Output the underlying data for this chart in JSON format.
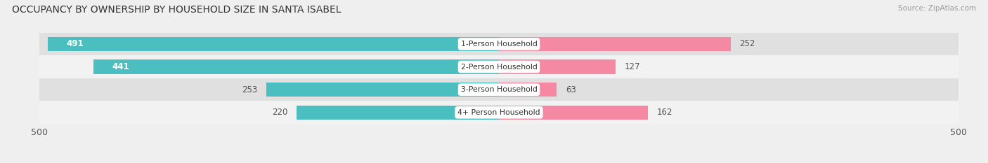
{
  "title": "OCCUPANCY BY OWNERSHIP BY HOUSEHOLD SIZE IN SANTA ISABEL",
  "source": "Source: ZipAtlas.com",
  "categories": [
    "1-Person Household",
    "2-Person Household",
    "3-Person Household",
    "4+ Person Household"
  ],
  "owner_values": [
    491,
    441,
    253,
    220
  ],
  "renter_values": [
    252,
    127,
    63,
    162
  ],
  "owner_color": "#4bbfbf",
  "renter_color": "#f589a3",
  "axis_max": 500,
  "bg_color": "#efefef",
  "row_bg_colors": [
    "#e0e0e0",
    "#f2f2f2",
    "#e0e0e0",
    "#f2f2f2"
  ],
  "label_inside_threshold": 300
}
